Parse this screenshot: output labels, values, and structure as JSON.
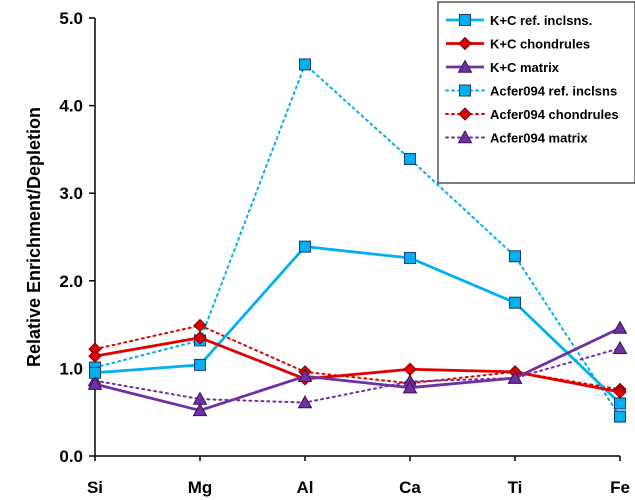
{
  "chart_data": {
    "type": "line",
    "title": "",
    "xlabel": "",
    "ylabel": "Relative Enrichment/Depletion",
    "categories": [
      "Si",
      "Mg",
      "Al",
      "Ca",
      "Ti",
      "Fe"
    ],
    "ylim": [
      0,
      5
    ],
    "yticks": [
      "0.0",
      "1.0",
      "2.0",
      "3.0",
      "4.0",
      "5.0"
    ],
    "grid": false,
    "legend_position": "top-right",
    "series": [
      {
        "name": "K+C ref. inclsns.",
        "color": "#00B0F0",
        "dash": "solid",
        "marker": "square",
        "values": [
          0.95,
          1.04,
          2.39,
          2.26,
          1.75,
          0.6
        ]
      },
      {
        "name": "K+C chondrules",
        "color": "#E00000",
        "dash": "solid",
        "marker": "diamond",
        "values": [
          1.14,
          1.35,
          0.88,
          0.99,
          0.96,
          0.73
        ]
      },
      {
        "name": "K+C matrix",
        "color": "#7030A0",
        "dash": "solid",
        "marker": "triangle",
        "values": [
          0.82,
          0.52,
          0.91,
          0.78,
          0.89,
          1.46
        ]
      },
      {
        "name": "Acfer094 ref. inclsns",
        "color": "#00B0F0",
        "dash": "dotted",
        "marker": "square",
        "values": [
          1.01,
          1.32,
          4.47,
          3.39,
          2.28,
          0.45
        ]
      },
      {
        "name": "Acfer094 chondrules",
        "color": "#E00000",
        "dash": "dotted",
        "marker": "diamond",
        "values": [
          1.22,
          1.49,
          0.96,
          0.83,
          0.96,
          0.76
        ]
      },
      {
        "name": "Acfer094 matrix",
        "color": "#7030A0",
        "dash": "dotted",
        "marker": "triangle",
        "values": [
          0.86,
          0.65,
          0.61,
          0.85,
          0.89,
          1.23
        ]
      }
    ]
  }
}
